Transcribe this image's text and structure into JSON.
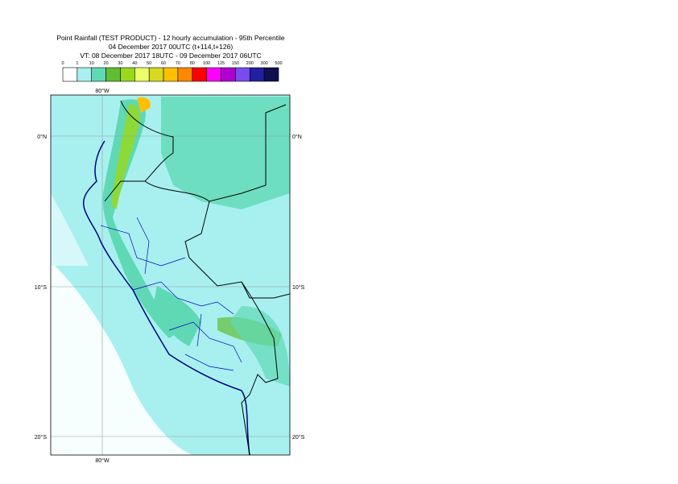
{
  "header": {
    "lines": [
      "Point Rainfall (TEST PRODUCT) - 12 hourly accumulation - 95th Percentile",
      "04 December 2017 00UTC (t+114,t+126)",
      "VT: 08 December 2017 18UTC - 09 December 2017 06UTC"
    ]
  },
  "legend": {
    "ticks": [
      0,
      1,
      10,
      20,
      30,
      40,
      50,
      60,
      70,
      80,
      100,
      125,
      150,
      200,
      300,
      500
    ],
    "colors": [
      "#ffffff",
      "#a8f0f0",
      "#5fd9b4",
      "#5fbe34",
      "#9ad81c",
      "#eaff6a",
      "#d8d820",
      "#ffc000",
      "#ff8a00",
      "#ff0000",
      "#ff00ff",
      "#b000d0",
      "#7a4cf0",
      "#2020a0",
      "#101050"
    ]
  },
  "map": {
    "lon_labels": [
      "80°W",
      "80°W"
    ],
    "lat_labels": [
      "0°N",
      "10°S",
      "20°S",
      "0°N",
      "10°S",
      "20°S"
    ]
  }
}
